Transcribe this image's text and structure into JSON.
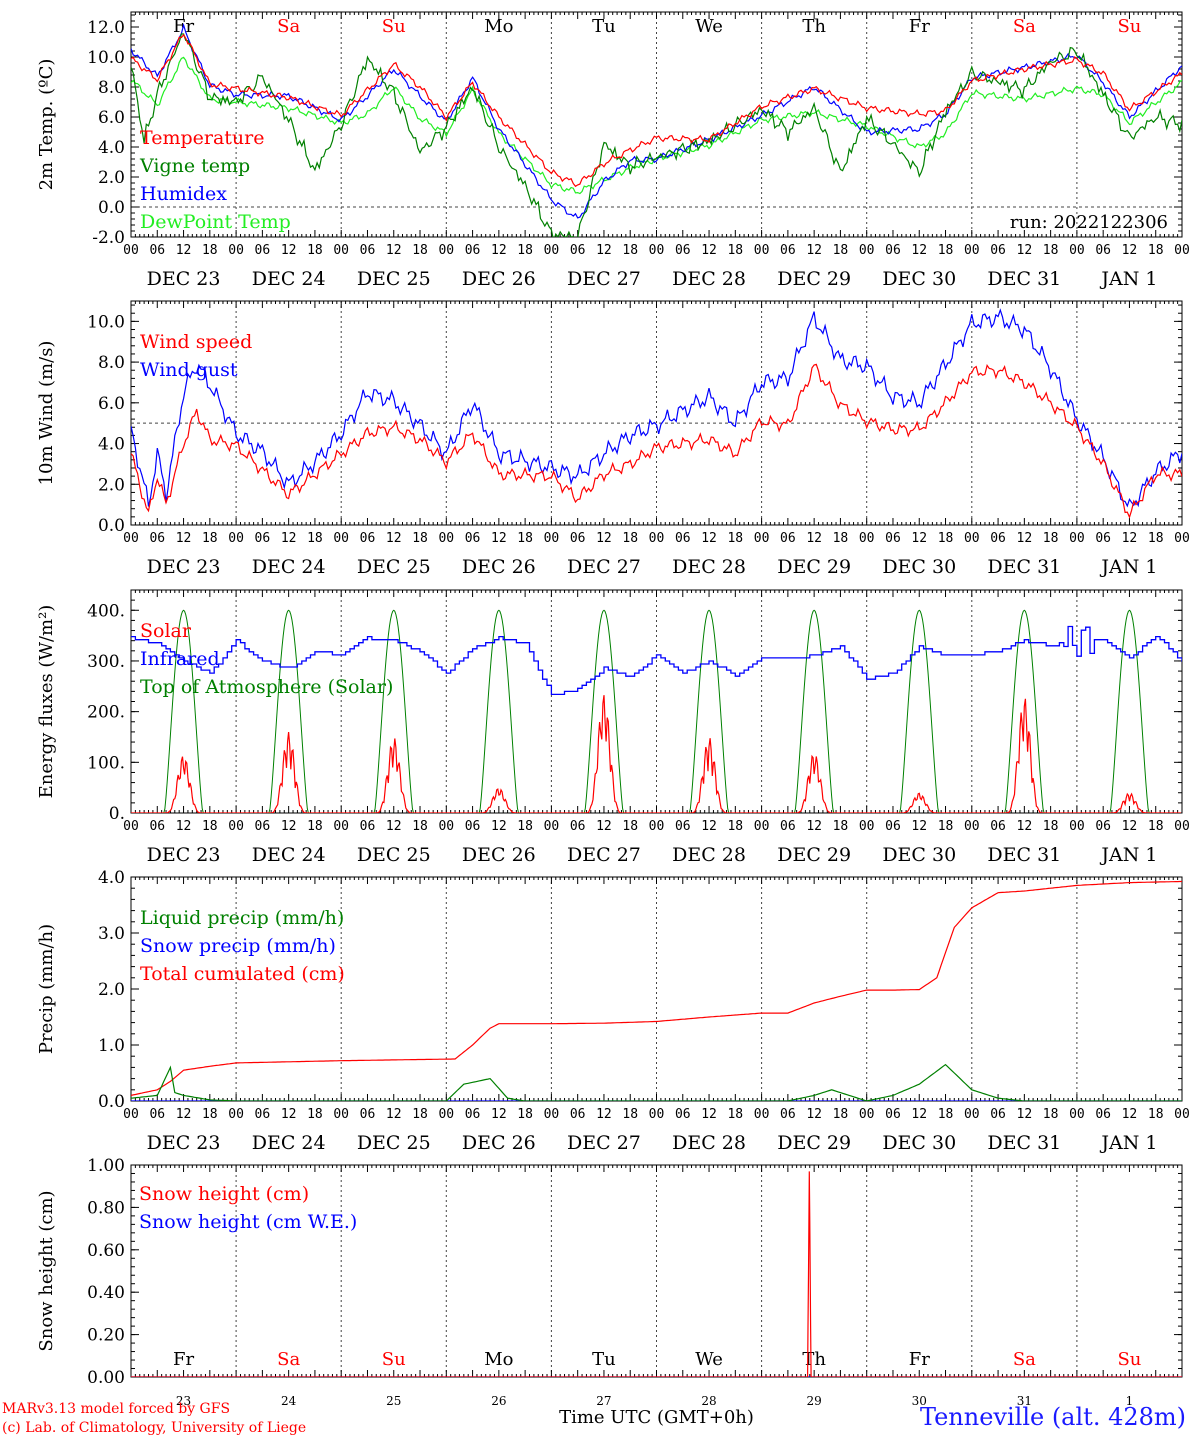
{
  "page": {
    "run_label": "run: 2022122306",
    "station": "Tenneville (alt. 428m)",
    "credit_1": "MARv3.13 model forced by GFS",
    "credit_2": "(c) Lab. of Climatology, University of Liege",
    "time_axis_label": "Time UTC (GMT+0h)"
  },
  "colors": {
    "red": "#ff0000",
    "green": "#008000",
    "blue": "#0000ff",
    "light_green": "#22ee22",
    "dark_red": "#b00000",
    "purple": "#7f007f"
  },
  "days": {
    "labels": [
      "DEC 23",
      "DEC 24",
      "DEC 25",
      "DEC 26",
      "DEC 27",
      "DEC 28",
      "DEC 29",
      "DEC 30",
      "DEC 31",
      "JAN  1"
    ],
    "weekdays": [
      "Fr",
      "Sa",
      "Su",
      "Mo",
      "Tu",
      "We",
      "Th",
      "Fr",
      "Sa",
      "Su"
    ],
    "weekday_colors": [
      "#000000",
      "#ff0000",
      "#ff0000",
      "#000000",
      "#000000",
      "#000000",
      "#000000",
      "#000000",
      "#ff0000",
      "#ff0000"
    ],
    "day_numbers": [
      "23",
      "24",
      "25",
      "26",
      "27",
      "28",
      "29",
      "30",
      "31",
      "1"
    ],
    "hour_ticks": [
      "00",
      "06",
      "12",
      "18"
    ]
  },
  "chart_data": [
    {
      "type": "line",
      "ylabel": "2m Temp. (ºC)",
      "ylim": [
        -2,
        13
      ],
      "yticks": [
        "-2.0",
        "0.0",
        "2.0",
        "4.0",
        "6.0",
        "8.0",
        "10.0",
        "12.0"
      ],
      "ref_line": 0,
      "x_unit": "hours since Dec 23 00 UTC",
      "series": [
        {
          "name": "Temperature",
          "color": "#ff0000",
          "x": [
            0,
            6,
            12,
            18,
            24,
            36,
            48,
            54,
            60,
            66,
            72,
            78,
            84,
            96,
            102,
            108,
            114,
            120,
            132,
            144,
            156,
            168,
            180,
            186,
            192,
            204,
            216,
            222,
            228,
            240
          ],
          "values": [
            9.9,
            8.5,
            11.6,
            8.2,
            7.9,
            7.3,
            6.1,
            7.8,
            9.5,
            8.0,
            6.0,
            8.3,
            6.0,
            2.3,
            1.5,
            2.9,
            3.8,
            4.6,
            4.5,
            6.7,
            7.9,
            6.6,
            6.2,
            6.4,
            8.4,
            9.2,
            9.8,
            8.9,
            6.5,
            8.9
          ]
        },
        {
          "name": "Vigne temp",
          "color": "#008000",
          "x": [
            0,
            3,
            6,
            12,
            18,
            24,
            30,
            36,
            42,
            48,
            54,
            60,
            66,
            72,
            78,
            84,
            90,
            96,
            102,
            108,
            114,
            120,
            132,
            144,
            150,
            156,
            162,
            168,
            174,
            180,
            186,
            192,
            204,
            210,
            216,
            222,
            228,
            234,
            240
          ],
          "values": [
            9.6,
            4.4,
            7.5,
            11.7,
            7.3,
            7.0,
            8.7,
            5.8,
            2.4,
            5.5,
            9.9,
            7.6,
            3.7,
            5.3,
            8.0,
            4.0,
            1.4,
            -1.8,
            -2.0,
            4.2,
            2.7,
            3.3,
            4.4,
            6.5,
            5.0,
            6.6,
            2.3,
            5.9,
            4.2,
            2.3,
            6.4,
            8.9,
            7.8,
            9.7,
            10.4,
            7.5,
            4.6,
            6.0,
            5.5
          ]
        },
        {
          "name": "Humidex",
          "color": "#0000ff",
          "x": [
            0,
            6,
            12,
            18,
            24,
            36,
            48,
            54,
            60,
            66,
            72,
            78,
            84,
            96,
            102,
            108,
            114,
            120,
            132,
            144,
            156,
            168,
            180,
            186,
            192,
            204,
            216,
            222,
            228,
            240
          ],
          "values": [
            10.5,
            8.7,
            11.9,
            8.1,
            7.5,
            7.4,
            5.8,
            7.4,
            9.2,
            7.4,
            5.7,
            8.6,
            5.2,
            0.5,
            -0.8,
            1.7,
            3.1,
            3.2,
            4.5,
            6.1,
            8.0,
            5.0,
            5.2,
            6.2,
            8.6,
            9.3,
            10.1,
            8.3,
            6.0,
            9.4
          ]
        },
        {
          "name": "DewPoint Temp",
          "color": "#22ee22",
          "x": [
            0,
            6,
            12,
            18,
            24,
            36,
            48,
            54,
            60,
            66,
            72,
            78,
            84,
            96,
            102,
            108,
            114,
            120,
            132,
            144,
            156,
            168,
            180,
            186,
            192,
            204,
            216,
            222,
            228,
            240
          ],
          "values": [
            8.5,
            6.8,
            10.0,
            7.2,
            7.0,
            6.6,
            5.6,
            6.2,
            8.0,
            5.9,
            4.9,
            7.8,
            4.9,
            1.5,
            1.0,
            1.8,
            2.6,
            3.2,
            4.1,
            5.8,
            6.3,
            5.4,
            4.0,
            4.9,
            7.6,
            7.2,
            7.9,
            7.5,
            5.6,
            8.3
          ]
        }
      ]
    },
    {
      "type": "line",
      "ylabel": "10m Wind (m/s)",
      "ylim": [
        0,
        11
      ],
      "yticks": [
        "0.0",
        "2.0",
        "4.0",
        "6.0",
        "8.0",
        "10.0"
      ],
      "ref_line": 5,
      "x_unit": "hours since Dec 23 00 UTC",
      "series": [
        {
          "name": "Wind speed",
          "color": "#ff0000",
          "x": [
            0,
            4,
            6,
            8,
            12,
            15,
            18,
            24,
            30,
            36,
            42,
            48,
            54,
            60,
            66,
            72,
            78,
            84,
            96,
            102,
            108,
            114,
            120,
            132,
            138,
            144,
            150,
            156,
            162,
            168,
            174,
            180,
            186,
            192,
            198,
            204,
            210,
            216,
            222,
            228,
            234,
            240
          ],
          "values": [
            3.5,
            0.5,
            2.4,
            1.0,
            4.0,
            5.6,
            4.2,
            3.9,
            2.7,
            1.5,
            2.5,
            3.5,
            4.5,
            4.8,
            4.2,
            3.1,
            4.5,
            2.5,
            2.4,
            1.3,
            2.5,
            3.0,
            3.8,
            4.2,
            3.5,
            5.1,
            4.9,
            7.8,
            5.9,
            5.1,
            4.7,
            4.7,
            6.0,
            7.5,
            7.6,
            7.0,
            6.0,
            4.8,
            3.0,
            0.5,
            2.5,
            2.5
          ]
        },
        {
          "name": "Wind gust",
          "color": "#0000ff",
          "x": [
            0,
            4,
            6,
            8,
            12,
            15,
            18,
            24,
            30,
            36,
            42,
            48,
            54,
            60,
            66,
            72,
            78,
            84,
            96,
            102,
            108,
            114,
            120,
            132,
            138,
            144,
            150,
            156,
            162,
            168,
            174,
            180,
            186,
            192,
            198,
            204,
            210,
            216,
            222,
            228,
            234,
            240
          ],
          "values": [
            4.7,
            1.0,
            3.5,
            1.5,
            6.5,
            7.9,
            6.9,
            4.5,
            3.6,
            2.0,
            3.1,
            4.5,
            6.5,
            6.1,
            4.9,
            3.5,
            6.0,
            3.5,
            2.8,
            2.4,
            3.5,
            4.4,
            4.9,
            6.3,
            5.0,
            7.0,
            7.2,
            10.2,
            8.1,
            7.8,
            6.3,
            6.0,
            7.9,
            9.9,
            10.2,
            9.6,
            7.7,
            5.2,
            3.3,
            0.8,
            2.6,
            3.6
          ]
        }
      ]
    },
    {
      "type": "line",
      "ylabel": "Energy fluxes (W/m²)",
      "ylim": [
        0,
        440
      ],
      "yticks": [
        "0.",
        "100.",
        "200.",
        "300.",
        "400."
      ],
      "x_unit": "hours since Dec 23 00 UTC",
      "toa_peak": 400,
      "solar_peaks": [
        115,
        160,
        150,
        50,
        235,
        150,
        120,
        40,
        230,
        40
      ],
      "series": [
        {
          "name": "Solar",
          "color": "#ff0000"
        },
        {
          "name": "Infrared",
          "color": "#0000ff",
          "x": [
            0,
            6,
            12,
            18,
            24,
            30,
            36,
            42,
            48,
            54,
            60,
            66,
            72,
            78,
            84,
            90,
            96,
            102,
            108,
            114,
            120,
            126,
            132,
            138,
            144,
            150,
            156,
            162,
            168,
            174,
            180,
            186,
            192,
            198,
            204,
            210,
            216,
            222,
            228,
            234,
            240
          ],
          "values": [
            345,
            335,
            300,
            275,
            340,
            300,
            285,
            320,
            310,
            345,
            340,
            320,
            275,
            325,
            345,
            335,
            232,
            245,
            285,
            270,
            310,
            275,
            300,
            270,
            305,
            305,
            310,
            330,
            265,
            275,
            330,
            310,
            310,
            320,
            340,
            330,
            340,
            340,
            305,
            350,
            300
          ]
        },
        {
          "name": "Top of Atmosphere (Solar)",
          "color": "#008000"
        }
      ]
    },
    {
      "type": "line",
      "ylabel": "Precip (mm/h)",
      "ylim": [
        0,
        4
      ],
      "yticks": [
        "0.0",
        "1.0",
        "2.0",
        "3.0",
        "4.0"
      ],
      "x_unit": "hours since Dec 23 00 UTC",
      "series": [
        {
          "name": "Liquid precip (mm/h)",
          "color": "#008000",
          "x": [
            0,
            6,
            9,
            10,
            12,
            18,
            24,
            72,
            76,
            82,
            86,
            90,
            96,
            150,
            156,
            160,
            168,
            174,
            180,
            186,
            192,
            198,
            204,
            240
          ],
          "values": [
            0.05,
            0.1,
            0.6,
            0.15,
            0.1,
            0.02,
            0.0,
            0.0,
            0.3,
            0.4,
            0.05,
            0.0,
            0.0,
            0.0,
            0.1,
            0.2,
            0.0,
            0.1,
            0.3,
            0.65,
            0.2,
            0.05,
            0.0,
            0.0
          ]
        },
        {
          "name": "Snow precip (mm/h)",
          "color": "#0000ff",
          "x": [
            0,
            240
          ],
          "values": [
            0.0,
            0.0
          ]
        },
        {
          "name": "Total cumulated (cm)",
          "color": "#ff0000",
          "x": [
            0,
            6,
            9,
            12,
            18,
            24,
            48,
            74,
            78,
            82,
            84,
            90,
            96,
            108,
            120,
            132,
            144,
            150,
            156,
            162,
            168,
            174,
            180,
            184,
            188,
            192,
            198,
            204,
            216,
            228,
            240
          ],
          "values": [
            0.1,
            0.2,
            0.35,
            0.55,
            0.62,
            0.68,
            0.72,
            0.75,
            1.0,
            1.3,
            1.38,
            1.38,
            1.38,
            1.39,
            1.42,
            1.5,
            1.57,
            1.57,
            1.75,
            1.87,
            1.98,
            1.98,
            1.99,
            2.2,
            3.1,
            3.45,
            3.72,
            3.75,
            3.85,
            3.9,
            3.92
          ]
        }
      ]
    },
    {
      "type": "line",
      "ylabel": "Snow height (cm)",
      "ylim": [
        0,
        1
      ],
      "yticks": [
        "0.00",
        "0.20",
        "0.40",
        "0.60",
        "0.80",
        "1.00"
      ],
      "x_unit": "hours since Dec 23 00 UTC",
      "series": [
        {
          "name": "Snow height (cm)",
          "color": "#ff0000",
          "x": [
            0,
            154.5,
            154.9,
            155.3,
            240
          ],
          "values": [
            0,
            0,
            0.97,
            0,
            0
          ]
        },
        {
          "name": "Snow height (cm W.E.)",
          "color": "#0000ff",
          "x": [
            0,
            240
          ],
          "values": [
            0,
            0
          ]
        }
      ]
    }
  ]
}
